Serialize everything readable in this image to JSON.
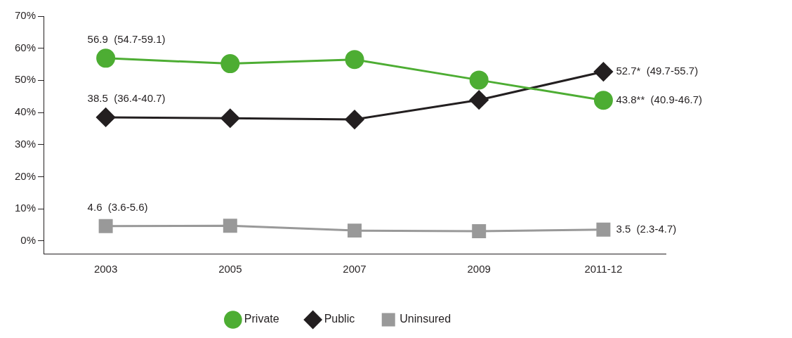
{
  "chart_data": {
    "type": "line",
    "categories": [
      "2003",
      "2005",
      "2007",
      "2009",
      "2011-12"
    ],
    "series": [
      {
        "name": "Private",
        "color": "#4dad33",
        "marker": "circle",
        "values": [
          56.9,
          55.2,
          56.5,
          50.1,
          43.8
        ],
        "value_labels": [
          "56.9  (54.7-59.1)",
          null,
          null,
          null,
          "43.8**  (40.9-46.7)"
        ]
      },
      {
        "name": "Public",
        "color": "#231f20",
        "marker": "diamond",
        "values": [
          38.5,
          38.2,
          37.8,
          43.9,
          52.7
        ],
        "value_labels": [
          "38.5  (36.4-40.7)",
          null,
          null,
          null,
          "52.7*  (49.7-55.7)"
        ]
      },
      {
        "name": "Uninsured",
        "color": "#999999",
        "marker": "square",
        "values": [
          4.6,
          4.7,
          3.2,
          3.0,
          3.5
        ],
        "value_labels": [
          "4.6  (3.6-5.6)",
          null,
          null,
          null,
          "3.5  (2.3-4.7)"
        ]
      }
    ],
    "ylim": [
      -4,
      70
    ],
    "yticks": [
      {
        "value": 0,
        "label": "0%"
      },
      {
        "value": 10,
        "label": "10%"
      },
      {
        "value": 20,
        "label": "20%"
      },
      {
        "value": 30,
        "label": "30%"
      },
      {
        "value": 40,
        "label": "40%"
      },
      {
        "value": 50,
        "label": "50%"
      },
      {
        "value": 60,
        "label": "60%"
      },
      {
        "value": 70,
        "label": "70%"
      }
    ],
    "grid": false,
    "legend": "bottom",
    "line_style": "solid"
  }
}
